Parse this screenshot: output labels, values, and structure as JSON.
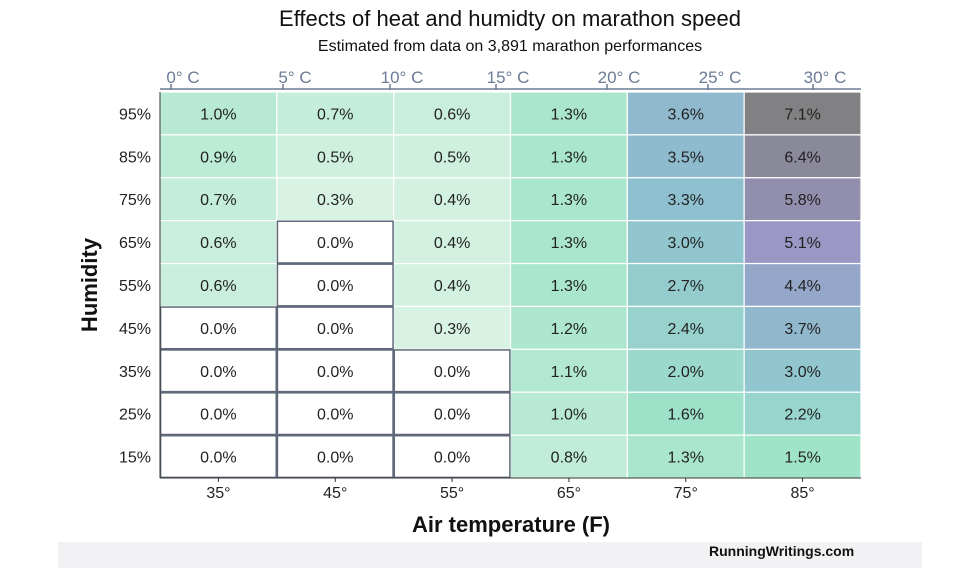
{
  "header": {
    "title": "Effects of heat and humidty on marathon speed",
    "subtitle": "Estimated from data on 3,891 marathon performances"
  },
  "footer": {
    "credit": "RunningWritings.com"
  },
  "chart_data": {
    "type": "heatmap",
    "title": "Effects of heat and humidty on marathon speed",
    "subtitle": "Estimated from data on 3,891 marathon performances",
    "xlabel": "Air temperature (F)",
    "ylabel": "Humidity",
    "x_categories": [
      "35°",
      "45°",
      "55°",
      "65°",
      "75°",
      "85°"
    ],
    "x_secondary_ticks": [
      "0° C",
      "5° C",
      "10° C",
      "15° C",
      "20° C",
      "25° C",
      "30° C"
    ],
    "y_categories": [
      "95%",
      "85%",
      "75%",
      "65%",
      "55%",
      "45%",
      "35%",
      "25%",
      "15%"
    ],
    "values": [
      [
        1.0,
        0.7,
        0.6,
        1.3,
        3.6,
        7.1
      ],
      [
        0.9,
        0.5,
        0.5,
        1.3,
        3.5,
        6.4
      ],
      [
        0.7,
        0.3,
        0.4,
        1.3,
        3.3,
        5.8
      ],
      [
        0.6,
        0.0,
        0.4,
        1.3,
        3.0,
        5.1
      ],
      [
        0.6,
        0.0,
        0.4,
        1.3,
        2.7,
        4.4
      ],
      [
        0.0,
        0.0,
        0.3,
        1.2,
        2.4,
        3.7
      ],
      [
        0.0,
        0.0,
        0.0,
        1.1,
        2.0,
        3.0
      ],
      [
        0.0,
        0.0,
        0.0,
        1.0,
        1.6,
        2.2
      ],
      [
        0.0,
        0.0,
        0.0,
        0.8,
        1.3,
        1.5
      ]
    ],
    "value_format": "percent",
    "colors": {
      "zero": "#ffffff",
      "low": "#e6f6ea",
      "mid": "#9fe3c9",
      "blue": "#8ec0d0",
      "purple": "#9a97c4",
      "high": "#808080",
      "zero_border": "#5e6878",
      "cell_border": "#ffffff",
      "celsius_tick": "#6b7c95"
    }
  }
}
